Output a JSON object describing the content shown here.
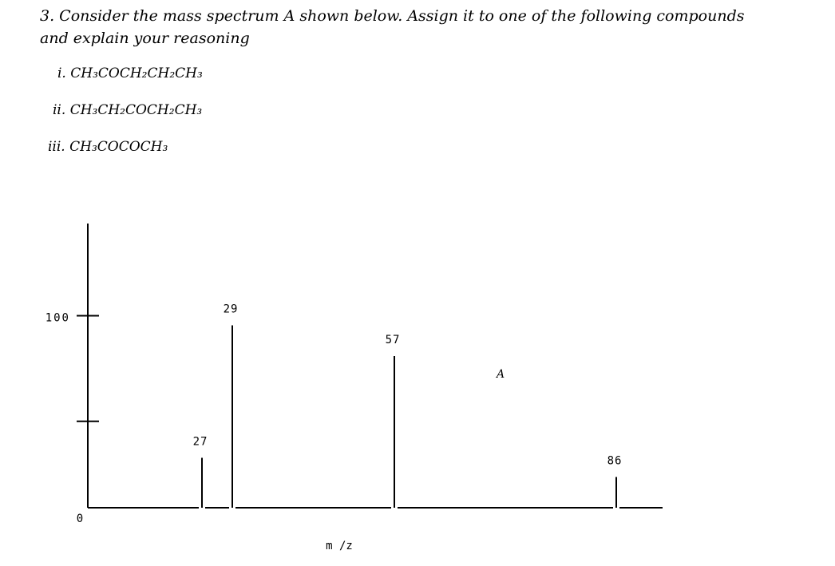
{
  "question": {
    "text": "3. Consider the mass spectrum A shown below. Assign it to one of the following compounds and explain your reasoning",
    "options": [
      {
        "label": "i.",
        "formula": "CH₃COCH₂CH₂CH₃"
      },
      {
        "label": "ii.",
        "formula": "CH₃CH₂COCH₂CH₃"
      },
      {
        "label": "iii.",
        "formula": "CH₃COCOCH₃"
      }
    ]
  },
  "chart_data": {
    "type": "bar",
    "annotation": "A",
    "x_label": "m /z",
    "categories": [
      "27",
      "29",
      "57",
      "86"
    ],
    "values": [
      26,
      95,
      79,
      16
    ],
    "color": "#000000",
    "ylim": [
      0,
      148
    ],
    "yticks": [
      0,
      100
    ],
    "minor_yticks": [
      45
    ]
  }
}
